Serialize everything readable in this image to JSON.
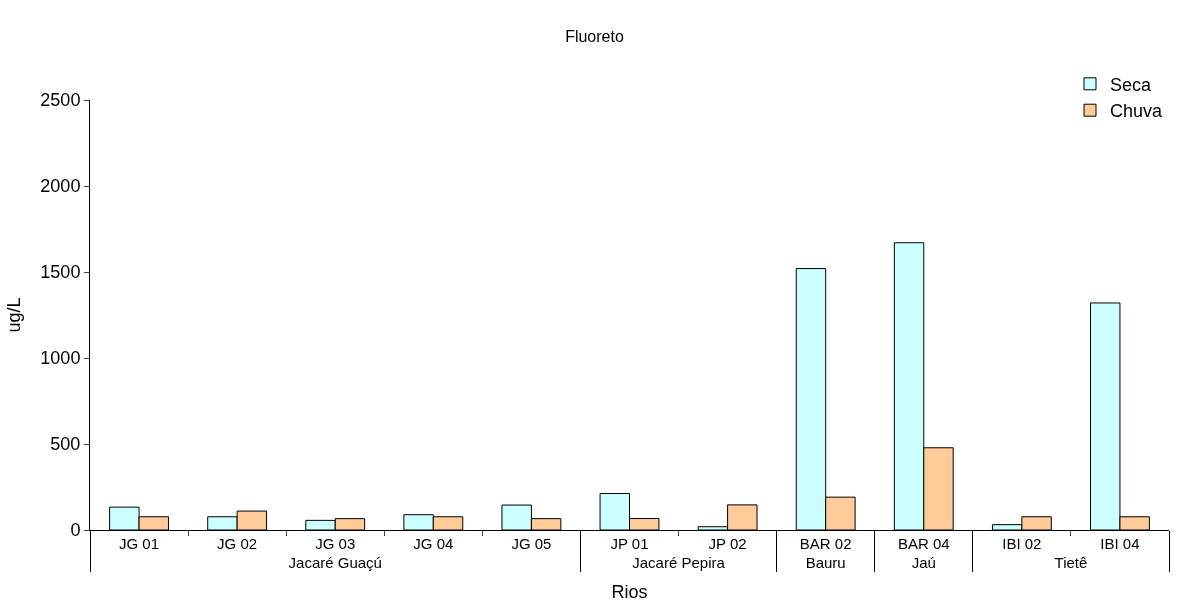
{
  "chart_data": {
    "type": "bar",
    "title": "Fluoreto",
    "xlabel": "Rios",
    "ylabel": "ug/L",
    "categories": [
      "JG 01",
      "JG 02",
      "JG 03",
      "JG 04",
      "JG 05",
      "JP 01",
      "JP 02",
      "BAR 02",
      "BAR 04",
      "IBI 02",
      "IBI 04"
    ],
    "annotations": [
      "Jacaré Guaçú",
      "Jacaré Pepira",
      "Bauru",
      "Jaú",
      "Tietê"
    ],
    "series": [
      {
        "name": "Seca",
        "color": "#ccffff",
        "values": [
          133,
          77,
          56,
          89,
          145,
          212,
          19,
          1520,
          1670,
          31,
          1320
        ]
      },
      {
        "name": "Chuva",
        "color": "#ffcc99",
        "values": [
          77,
          110,
          66,
          77,
          66,
          67,
          146,
          191,
          478,
          77,
          77
        ]
      }
    ],
    "ylim": [
      0,
      2500
    ],
    "yticks": [
      0,
      500,
      1000,
      1500,
      2000,
      2500
    ],
    "legend": "top right"
  }
}
